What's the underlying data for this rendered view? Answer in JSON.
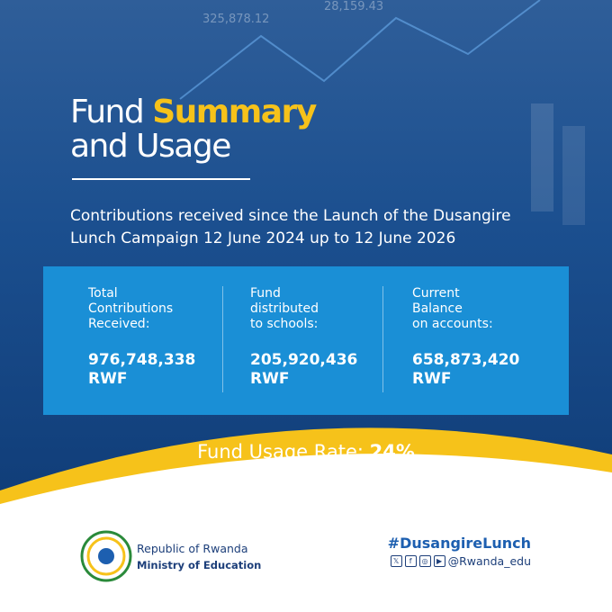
{
  "background_figures": [
    "325,878.12",
    "28,159.43"
  ],
  "title": {
    "line1_plain": "Fund",
    "line1_highlight": "Summary",
    "line2": "and Usage"
  },
  "subtitle": {
    "lines": [
      "Contributions received since the Launch of the Dusangire",
      "Lunch Campaign 12 June 2024 up to 12 June 2026"
    ]
  },
  "stats": [
    {
      "label_lines": [
        "Total",
        "Contributions",
        "Received:"
      ],
      "value": "976,748,338",
      "unit": "RWF"
    },
    {
      "label_lines": [
        "Fund",
        "distributed",
        "to schools:"
      ],
      "value": "205,920,436",
      "unit": "RWF"
    },
    {
      "label_lines": [
        "Current",
        "Balance",
        "on accounts:"
      ],
      "value": "658,873,420",
      "unit": "RWF"
    }
  ],
  "usage_rate": {
    "label": "Fund Usage Rate:",
    "value": "24%"
  },
  "footer": {
    "org_line1": "Republic of Rwanda",
    "org_line2": "Ministry of Education",
    "hashtag": "#DusangireLunch",
    "handle": "@Rwanda_edu"
  }
}
